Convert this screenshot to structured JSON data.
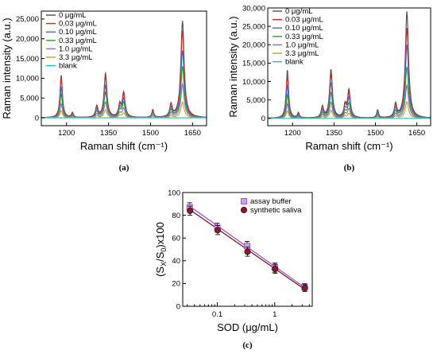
{
  "chart_data": [
    {
      "panel": "(a)",
      "type": "line",
      "xlabel": "Raman shift (cm⁻¹)",
      "ylabel": "Raman intensity (a.u.)",
      "xlim": [
        1110,
        1700
      ],
      "ylim": [
        -2000,
        27000
      ],
      "xticks": [
        "1200",
        "1350",
        "1500",
        "1650"
      ],
      "xtick_values": [
        1200,
        1350,
        1500,
        1650
      ],
      "yticks": [
        "0",
        "5,000",
        "10,000",
        "15,000",
        "20,000",
        "25,000"
      ],
      "ytick_values": [
        0,
        5000,
        10000,
        15000,
        20000,
        25000
      ],
      "peaks": [
        {
          "x": 1181,
          "width": 5
        },
        {
          "x": 1221,
          "width": 4
        },
        {
          "x": 1308,
          "width": 5
        },
        {
          "x": 1339,
          "width": 6
        },
        {
          "x": 1390,
          "width": 5
        },
        {
          "x": 1404,
          "width": 6
        },
        {
          "x": 1508,
          "width": 4
        },
        {
          "x": 1573,
          "width": 5
        },
        {
          "x": 1614,
          "width": 7
        }
      ],
      "series": [
        {
          "name": "0 μg/mL",
          "color": "#4d4d4d",
          "peak_heights": [
            10800,
            1200,
            2800,
            11200,
            3000,
            6200,
            2000,
            3200,
            24500
          ]
        },
        {
          "name": "0.03 μg/mL",
          "color": "#d62728",
          "peak_heights": [
            10200,
            1100,
            2600,
            10400,
            2800,
            5800,
            1900,
            3000,
            22000
          ]
        },
        {
          "name": "0.10 μg/mL",
          "color": "#3a6fd6",
          "peak_heights": [
            7800,
            850,
            2100,
            8200,
            2300,
            4700,
            1500,
            2400,
            17000
          ]
        },
        {
          "name": "0.33 μg/mL",
          "color": "#2ca02c",
          "peak_heights": [
            6000,
            650,
            1600,
            6500,
            1800,
            3800,
            1200,
            1900,
            13000
          ]
        },
        {
          "name": "1.0 μg/mL",
          "color": "#9467bd",
          "peak_heights": [
            3600,
            400,
            1000,
            4000,
            1100,
            2400,
            800,
            1200,
            8500
          ]
        },
        {
          "name": "3.3 μg/mL",
          "color": "#c8a020",
          "peak_heights": [
            1800,
            200,
            500,
            2000,
            600,
            1200,
            400,
            600,
            4000
          ]
        },
        {
          "name": "blank",
          "color": "#17becf",
          "peak_heights": [
            0,
            0,
            0,
            0,
            0,
            0,
            0,
            0,
            0
          ]
        }
      ]
    },
    {
      "panel": "(b)",
      "type": "line",
      "xlabel": "Raman shift (cm⁻¹)",
      "ylabel": "Raman intensity (a.u.)",
      "xlim": [
        1110,
        1700
      ],
      "ylim": [
        -2000,
        30000
      ],
      "xticks": [
        "1200",
        "1350",
        "1500",
        "1650"
      ],
      "xtick_values": [
        1200,
        1350,
        1500,
        1650
      ],
      "yticks": [
        "0",
        "5,000",
        "10,000",
        "15,000",
        "20,000",
        "25,000",
        "30,000"
      ],
      "ytick_values": [
        0,
        5000,
        10000,
        15000,
        20000,
        25000,
        30000
      ],
      "peaks": [
        {
          "x": 1181,
          "width": 5
        },
        {
          "x": 1221,
          "width": 4
        },
        {
          "x": 1308,
          "width": 5
        },
        {
          "x": 1339,
          "width": 6
        },
        {
          "x": 1390,
          "width": 5
        },
        {
          "x": 1404,
          "width": 6
        },
        {
          "x": 1508,
          "width": 4
        },
        {
          "x": 1573,
          "width": 5
        },
        {
          "x": 1614,
          "width": 7
        }
      ],
      "series": [
        {
          "name": "0 μg/mL",
          "color": "#4d4d4d",
          "peak_heights": [
            13200,
            1400,
            3000,
            13200,
            3200,
            7500,
            2200,
            3600,
            29000
          ]
        },
        {
          "name": "0.03 μg/mL",
          "color": "#d62728",
          "peak_heights": [
            11800,
            1250,
            2700,
            11800,
            2900,
            6700,
            2000,
            3200,
            24500
          ]
        },
        {
          "name": "0.10 μg/mL",
          "color": "#3a6fd6",
          "peak_heights": [
            9000,
            950,
            2100,
            9500,
            2300,
            5400,
            1600,
            2600,
            20000
          ]
        },
        {
          "name": "0.33 μg/mL",
          "color": "#2ca02c",
          "peak_heights": [
            6500,
            700,
            1500,
            7000,
            1700,
            4000,
            1200,
            1900,
            14000
          ]
        },
        {
          "name": "1.0 μg/mL",
          "color": "#9467bd",
          "peak_heights": [
            4000,
            450,
            1000,
            4400,
            1100,
            2600,
            800,
            1200,
            9000
          ]
        },
        {
          "name": "3.3 μg/mL",
          "color": "#c8a020",
          "peak_heights": [
            2000,
            220,
            500,
            2200,
            600,
            1300,
            400,
            600,
            4500
          ]
        },
        {
          "name": "blank",
          "color": "#17becf",
          "peak_heights": [
            0,
            0,
            0,
            0,
            0,
            0,
            0,
            0,
            0
          ]
        }
      ]
    },
    {
      "panel": "(c)",
      "type": "scatter",
      "xlabel": "SOD (μg/mL)",
      "ylabel": "(Sₓ/S₀)x100",
      "ylabel_parts": {
        "lead": "(S",
        "sub1": "X",
        "mid": "/S",
        "sub2": "0",
        "tail": ")x100"
      },
      "x_scale": "log",
      "xlim": [
        0.025,
        4.5
      ],
      "ylim": [
        0,
        100
      ],
      "xticks": [
        "0.1",
        "1"
      ],
      "xtick_values": [
        0.1,
        1
      ],
      "yticks": [
        "0",
        "20",
        "40",
        "60",
        "80",
        "100"
      ],
      "ytick_values": [
        0,
        20,
        40,
        60,
        80,
        100
      ],
      "series": [
        {
          "name": "assay buffer",
          "color": "#9b59d0",
          "marker": "square",
          "x": [
            0.033,
            0.1,
            0.33,
            1.0,
            3.3
          ],
          "y": [
            87,
            69,
            53,
            34,
            17
          ],
          "err": [
            4,
            4,
            4,
            4,
            3
          ],
          "fit": [
            [
              0.033,
              88
            ],
            [
              3.3,
              16.5
            ]
          ]
        },
        {
          "name": "synthetic saliva",
          "color": "#8b1a2b",
          "marker": "circle",
          "x": [
            0.033,
            0.1,
            0.33,
            1.0,
            3.3
          ],
          "y": [
            84,
            67,
            48,
            33,
            16
          ],
          "err": [
            4,
            4,
            4,
            4,
            3
          ],
          "fit": [
            [
              0.033,
              85
            ],
            [
              3.3,
              15
            ]
          ]
        }
      ]
    }
  ]
}
